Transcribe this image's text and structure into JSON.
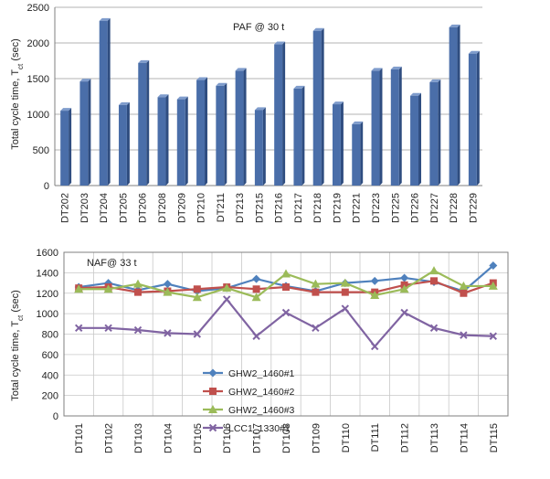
{
  "chart_data": [
    {
      "type": "bar",
      "annotation": "PAF @ 30 t",
      "ylabel_main": "Total cycle time, T",
      "ylabel_sub": "ct",
      "ylabel_unit": " (sec)",
      "ylim": [
        0,
        2500
      ],
      "yticks": [
        0,
        500,
        1000,
        1500,
        2000,
        2500
      ],
      "grid": true,
      "categories": [
        "DT202",
        "DT203",
        "DT204",
        "DT205",
        "DT206",
        "DT208",
        "DT209",
        "DT210",
        "DT211",
        "DT213",
        "DT215",
        "DT216",
        "DT217",
        "DT218",
        "DT219",
        "DT221",
        "DT223",
        "DT225",
        "DT226",
        "DT227",
        "DT228",
        "DT229"
      ],
      "values": [
        1050,
        1460,
        2310,
        1130,
        1720,
        1240,
        1210,
        1480,
        1400,
        1610,
        1060,
        1980,
        1360,
        2170,
        1140,
        860,
        1610,
        1630,
        1260,
        1450,
        2220,
        1850
      ],
      "bar_color": "#4a6ea9"
    },
    {
      "type": "line",
      "annotation": "NAF@ 33 t",
      "ylabel_main": "Total cycle time, T",
      "ylabel_sub": "ct",
      "ylabel_unit": " (sec)",
      "ylim": [
        0,
        1600
      ],
      "yticks": [
        0,
        200,
        400,
        600,
        800,
        1000,
        1200,
        1400,
        1600
      ],
      "grid": true,
      "legend_placement": "lower-left-center",
      "categories": [
        "DT101",
        "DT102",
        "DT103",
        "DT104",
        "DT105",
        "DT106",
        "DT107",
        "DT108",
        "DT109",
        "DT110",
        "DT111",
        "DT112",
        "DT113",
        "DT114",
        "DT115"
      ],
      "series": [
        {
          "name": "GHW2_1460#1",
          "color": "#4f81bd",
          "marker": "diamond",
          "values": [
            1260,
            1300,
            1230,
            1290,
            1220,
            1250,
            1340,
            1270,
            1220,
            1300,
            1320,
            1350,
            1310,
            1220,
            1470
          ]
        },
        {
          "name": "GHW2_1460#2",
          "color": "#c0504d",
          "marker": "square",
          "values": [
            1250,
            1260,
            1210,
            1220,
            1240,
            1260,
            1240,
            1260,
            1210,
            1210,
            1210,
            1280,
            1320,
            1200,
            1300
          ]
        },
        {
          "name": "GHW2_1460#3",
          "color": "#9bbb59",
          "marker": "triangle",
          "values": [
            1240,
            1240,
            1290,
            1210,
            1160,
            1250,
            1160,
            1390,
            1290,
            1300,
            1180,
            1240,
            1420,
            1270,
            1270
          ]
        },
        {
          "name": "LCC1_1330#1",
          "color": "#8064a2",
          "marker": "x",
          "values": [
            860,
            860,
            840,
            810,
            800,
            1140,
            780,
            1010,
            860,
            1050,
            680,
            1010,
            860,
            790,
            780
          ]
        }
      ]
    }
  ]
}
